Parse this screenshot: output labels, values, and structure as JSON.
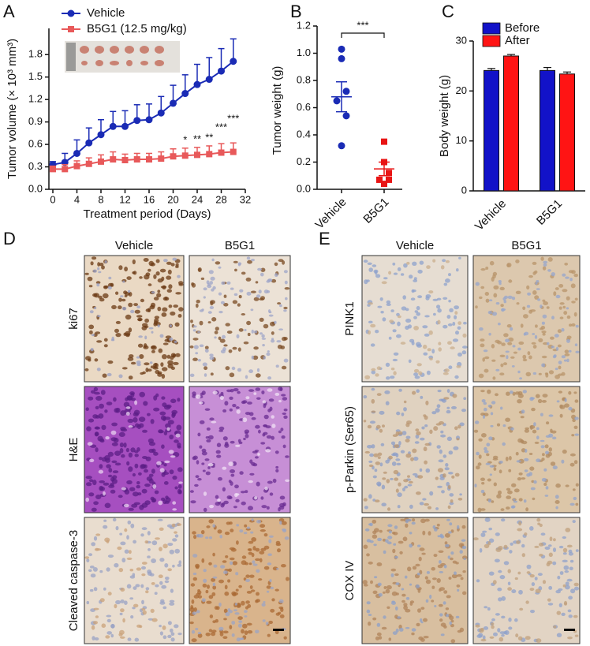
{
  "panels": {
    "letters": [
      "A",
      "B",
      "C",
      "D",
      "E"
    ],
    "D": {
      "columns": [
        "Vehicle",
        "B5G1"
      ],
      "rows": [
        "ki67",
        "H&E",
        "Cleaved caspase-3"
      ]
    },
    "E": {
      "columns": [
        "Vehicle",
        "B5G1"
      ],
      "rows": [
        "PINK1",
        "p-Parkin (Ser65)",
        "COX IV"
      ]
    }
  },
  "chart_data": [
    {
      "type": "line",
      "xlabel": "Treatment period (Days)",
      "ylabel": "Tumor volume (× 10³ mm³)",
      "x": [
        0,
        2,
        4,
        6,
        8,
        10,
        12,
        14,
        16,
        18,
        20,
        22,
        24,
        26,
        28,
        30
      ],
      "series": [
        {
          "name": "Vehicle",
          "color": "#1a2bb5",
          "marker": "circle",
          "values": [
            0.33,
            0.36,
            0.48,
            0.62,
            0.73,
            0.84,
            0.84,
            0.92,
            0.93,
            1.02,
            1.15,
            1.28,
            1.4,
            1.47,
            1.58,
            1.71
          ],
          "errors": [
            0.04,
            0.12,
            0.18,
            0.2,
            0.2,
            0.2,
            0.21,
            0.21,
            0.21,
            0.22,
            0.24,
            0.25,
            0.27,
            0.29,
            0.3,
            0.3
          ]
        },
        {
          "name": "B5G1 (12.5 mg/kg)",
          "color": "#e8595a",
          "marker": "square",
          "values": [
            0.27,
            0.27,
            0.31,
            0.34,
            0.37,
            0.4,
            0.39,
            0.4,
            0.4,
            0.41,
            0.44,
            0.45,
            0.46,
            0.47,
            0.49,
            0.5
          ],
          "errors": [
            0.04,
            0.06,
            0.07,
            0.08,
            0.09,
            0.1,
            0.08,
            0.08,
            0.08,
            0.09,
            0.1,
            0.1,
            0.1,
            0.11,
            0.12,
            0.12
          ]
        }
      ],
      "xlim": [
        0,
        32
      ],
      "xticks": [
        0,
        4,
        8,
        12,
        16,
        20,
        24,
        28,
        32
      ],
      "ylim": [
        0,
        2.15
      ],
      "yticks": [
        {
          "value": 0,
          "label": "0.0"
        },
        0.3,
        0.6,
        0.9,
        1.2,
        1.5,
        1.8
      ],
      "annotations": [
        {
          "x": 22,
          "text": "*"
        },
        {
          "x": 24,
          "text": "**"
        },
        {
          "x": 26,
          "text": "**"
        },
        {
          "x": 28,
          "text": "***"
        },
        {
          "x": 30,
          "text": "***"
        }
      ]
    },
    {
      "type": "scatter",
      "ylabel": "Tumor weight (g)",
      "categories": [
        "Vehicle",
        "B5G1"
      ],
      "groups": [
        {
          "color": "#1a2bb5",
          "marker": "circle",
          "values": [
            1.03,
            0.96,
            0.72,
            0.65,
            0.54,
            0.32
          ],
          "mean": 0.68,
          "sem": 0.11
        },
        {
          "color": "#e81414",
          "marker": "square",
          "values": [
            0.35,
            0.2,
            0.12,
            0.07,
            0.07,
            0.04
          ],
          "mean": 0.15,
          "sem": 0.05
        }
      ],
      "significance": "***",
      "ylim": [
        0,
        1.2
      ],
      "yticks": [
        {
          "value": 0,
          "label": "0.0"
        },
        0.2,
        0.4,
        0.6,
        0.8,
        {
          "value": 1,
          "label": "1.0"
        },
        1.2
      ]
    },
    {
      "type": "bar",
      "ylabel": "Body weight (g)",
      "categories": [
        "Vehicle",
        "B5G1"
      ],
      "series": [
        {
          "name": "Before",
          "color": "#1212c8",
          "values": [
            24.1,
            24.1
          ],
          "errors": [
            0.4,
            0.6
          ]
        },
        {
          "name": "After",
          "color": "#ff1414",
          "values": [
            27.0,
            23.4
          ],
          "errors": [
            0.3,
            0.4
          ]
        }
      ],
      "ylim": [
        0,
        30
      ],
      "yticks": [
        0,
        10,
        20,
        30
      ]
    }
  ]
}
